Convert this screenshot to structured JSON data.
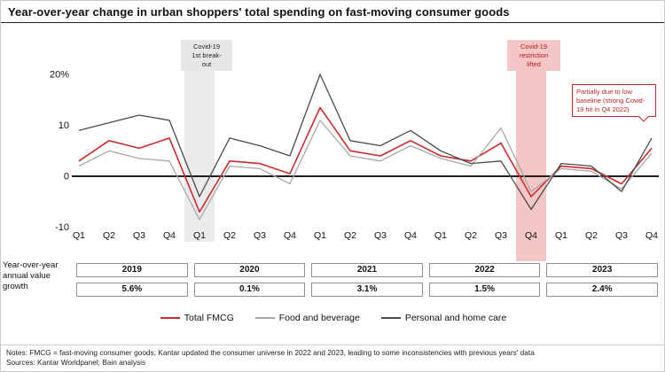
{
  "title": "Year-over-year change in urban shoppers' total spending on fast-moving consumer goods",
  "chart_data": {
    "type": "line",
    "title": "Year-over-year change in urban shoppers' total spending on fast-moving consumer goods",
    "x": [
      "Q1",
      "Q2",
      "Q3",
      "Q4",
      "Q1",
      "Q2",
      "Q3",
      "Q4",
      "Q1",
      "Q2",
      "Q3",
      "Q4",
      "Q1",
      "Q2",
      "Q3",
      "Q4",
      "Q1",
      "Q2",
      "Q3",
      "Q4"
    ],
    "year_groups": [
      "2019",
      "2020",
      "2021",
      "2022",
      "2023"
    ],
    "yticks": [
      {
        "label": "20%",
        "value": 20
      },
      {
        "label": "10",
        "value": 10
      },
      {
        "label": "0",
        "value": 0
      },
      {
        "label": "-10",
        "value": -10
      }
    ],
    "ylim": [
      -13,
      24
    ],
    "grid": false,
    "legend_position": "bottom",
    "series": [
      {
        "name": "Total FMCG",
        "color": "#cc2b2b",
        "width": 1.6,
        "values": [
          3.0,
          7.0,
          5.5,
          7.5,
          -7.0,
          3.0,
          2.5,
          0.5,
          13.5,
          5.0,
          4.0,
          7.0,
          4.0,
          3.0,
          6.5,
          -4.0,
          2.0,
          1.5,
          -1.5,
          5.5
        ]
      },
      {
        "name": "Food and beverage",
        "color": "#a8a8a8",
        "width": 1.3,
        "values": [
          2.0,
          5.0,
          3.5,
          3.0,
          -8.5,
          2.0,
          1.5,
          -1.5,
          11.0,
          4.0,
          3.0,
          6.0,
          3.5,
          2.0,
          9.5,
          -3.0,
          1.5,
          1.0,
          -2.5,
          4.5
        ]
      },
      {
        "name": "Personal and home care",
        "color": "#4a4a4a",
        "width": 1.3,
        "values": [
          9.0,
          10.5,
          12.0,
          11.0,
          -4.0,
          7.5,
          6.0,
          4.0,
          20.0,
          7.0,
          6.0,
          9.0,
          5.0,
          2.5,
          3.0,
          -6.5,
          2.5,
          2.0,
          -3.0,
          7.5
        ]
      }
    ],
    "bands": [
      {
        "name": "covid-breakout-band",
        "quarter_index": 4,
        "color": "#ebebeb",
        "bottom_extend": 228
      },
      {
        "name": "covid-lifted-band",
        "quarter_index": 15,
        "color": "#f5c6c6",
        "bottom_extend": 250
      }
    ]
  },
  "callouts": {
    "breakout": {
      "text": "Covid-19\n1st break-\nout"
    },
    "lifted": {
      "text": "Covid-19\nrestriction\nlifted"
    },
    "baseline": {
      "text": "Partially due to low baseline (strong Covid-19 hit in Q4 2022)"
    }
  },
  "table": {
    "row_label": "Year-over-year annual value growth",
    "years": [
      "2019",
      "2020",
      "2021",
      "2022",
      "2023"
    ],
    "values": [
      "5.6%",
      "0.1%",
      "3.1%",
      "1.5%",
      "2.4%"
    ]
  },
  "notes": {
    "line1": "Notes: FMCG = fast-moving consumer goods; Kantar updated the consumer universe in 2022 and 2023, leading to some inconsistencies with previous years' data",
    "line2": "Sources: Kantar Worldpanel; Bain analysis"
  }
}
